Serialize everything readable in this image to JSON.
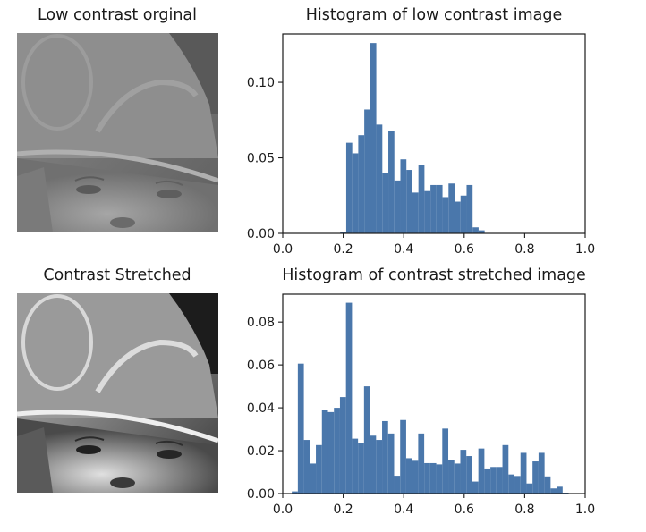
{
  "figure": {
    "panels": [
      {
        "title": "Low contrast orginal",
        "image_kind": "low-contrast-portrait"
      },
      {
        "title": "Contrast Stretched",
        "image_kind": "contrast-stretched-portrait"
      }
    ]
  },
  "colors": {
    "bar": "#4a77ab",
    "axis": "#1a1a1a"
  },
  "chart_data": [
    {
      "type": "bar",
      "title": "Histogram of low contrast image",
      "xlabel": "",
      "ylabel": "",
      "xlim": [
        0.0,
        1.0
      ],
      "ylim": [
        0.0,
        0.132
      ],
      "xticks": [
        0.0,
        0.2,
        0.4,
        0.6,
        0.8,
        1.0
      ],
      "xtick_labels": [
        "0.0",
        "0.2",
        "0.4",
        "0.6",
        "0.8",
        "1.0"
      ],
      "yticks": [
        0.0,
        0.05,
        0.1
      ],
      "ytick_labels": [
        "0.00",
        "0.05",
        "0.10"
      ],
      "grid": false,
      "bin_start": 0.19,
      "bin_width": 0.0199,
      "values": [
        0.001,
        0.06,
        0.053,
        0.065,
        0.082,
        0.126,
        0.072,
        0.04,
        0.068,
        0.035,
        0.049,
        0.042,
        0.027,
        0.045,
        0.028,
        0.032,
        0.032,
        0.024,
        0.033,
        0.021,
        0.025,
        0.032,
        0.004,
        0.002
      ]
    },
    {
      "type": "bar",
      "title": "Histogram of contrast stretched image",
      "xlabel": "",
      "ylabel": "",
      "xlim": [
        0.0,
        1.0
      ],
      "ylim": [
        0.0,
        0.093
      ],
      "xticks": [
        0.0,
        0.2,
        0.4,
        0.6,
        0.8,
        1.0
      ],
      "xtick_labels": [
        "0.0",
        "0.2",
        "0.4",
        "0.6",
        "0.8",
        "1.0"
      ],
      "yticks": [
        0.0,
        0.02,
        0.04,
        0.06,
        0.08
      ],
      "ytick_labels": [
        "0.00",
        "0.02",
        "0.04",
        "0.06",
        "0.08"
      ],
      "grid": false,
      "bin_start": 0.03,
      "bin_width": 0.0199,
      "values": [
        0.001,
        0.0606,
        0.025,
        0.014,
        0.0226,
        0.039,
        0.038,
        0.04,
        0.045,
        0.089,
        0.0256,
        0.0235,
        0.05,
        0.027,
        0.025,
        0.0338,
        0.028,
        0.0083,
        0.0343,
        0.0165,
        0.0153,
        0.028,
        0.0142,
        0.0142,
        0.0136,
        0.0303,
        0.0157,
        0.014,
        0.0204,
        0.0175,
        0.0056,
        0.021,
        0.0117,
        0.0124,
        0.0124,
        0.0226,
        0.0089,
        0.0082,
        0.019,
        0.0047,
        0.015,
        0.019,
        0.008,
        0.0024,
        0.0032,
        0.0004
      ]
    }
  ]
}
